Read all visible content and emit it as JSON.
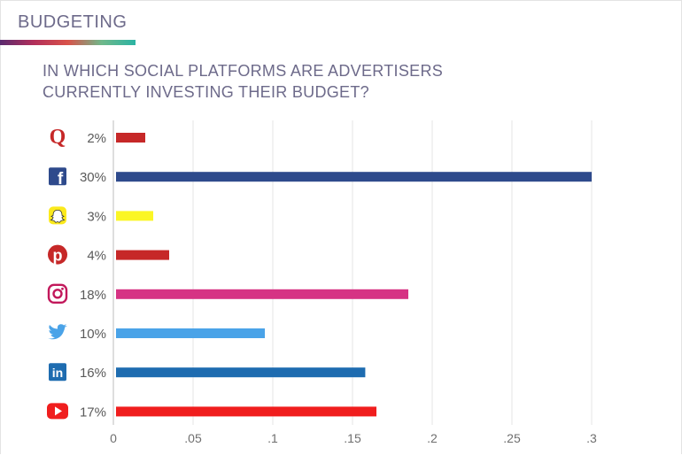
{
  "header": {
    "section_title": "BUDGETING",
    "chart_title_line1": "IN WHICH SOCIAL PLATFORMS ARE ADVERTISERS",
    "chart_title_line2": "CURRENTLY INVESTING THEIR BUDGET?"
  },
  "chart_data": {
    "type": "bar",
    "orientation": "horizontal",
    "title": "IN WHICH SOCIAL PLATFORMS ARE ADVERTISERS CURRENTLY INVESTING THEIR BUDGET?",
    "xlim": [
      0,
      0.3
    ],
    "x_ticks": [
      "0",
      ".05",
      ".1",
      ".15",
      ".2",
      ".25",
      ".3"
    ],
    "grid": true,
    "bars": [
      {
        "icon": "quora-icon",
        "label": "2%",
        "value": 0.02,
        "color": "#c62828"
      },
      {
        "icon": "facebook-icon",
        "label": "30%",
        "value": 0.3,
        "color": "#2e4a8c"
      },
      {
        "icon": "snapchat-icon",
        "label": "3%",
        "value": 0.025,
        "color": "#fbf625"
      },
      {
        "icon": "pinterest-icon",
        "label": "4%",
        "value": 0.035,
        "color": "#c62828"
      },
      {
        "icon": "instagram-icon",
        "label": "18%",
        "value": 0.185,
        "color": "#d63384"
      },
      {
        "icon": "twitter-icon",
        "label": "10%",
        "value": 0.095,
        "color": "#4aa3e8"
      },
      {
        "icon": "linkedin-icon",
        "label": "16%",
        "value": 0.158,
        "color": "#1e6cb0"
      },
      {
        "icon": "youtube-icon",
        "label": "17%",
        "value": 0.165,
        "color": "#f01e1e"
      }
    ]
  }
}
